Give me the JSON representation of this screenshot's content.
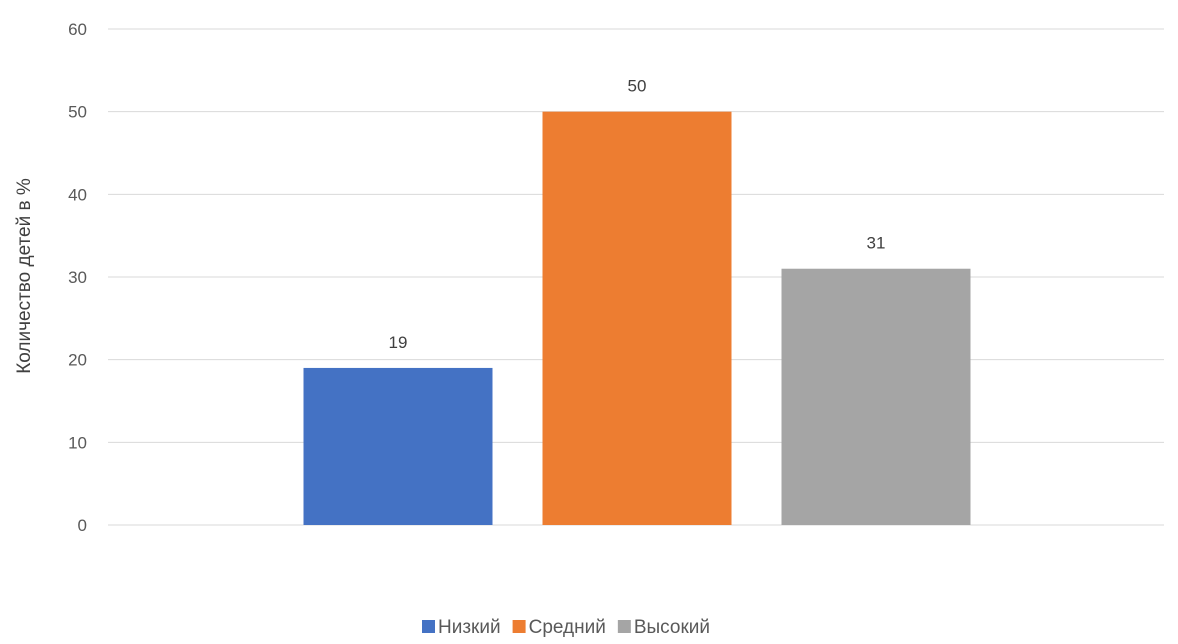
{
  "chart_data": {
    "type": "bar",
    "title": "",
    "xlabel": "",
    "ylabel": "Количество детей в %",
    "ylim": [
      0,
      60
    ],
    "yticks": [
      0,
      10,
      20,
      30,
      40,
      50,
      60
    ],
    "grid": true,
    "legend_position": "bottom",
    "series": [
      {
        "name": "Низкий",
        "value": 19,
        "color": "#4472C4"
      },
      {
        "name": "Средний",
        "value": 50,
        "color": "#ED7D31"
      },
      {
        "name": "Высокий",
        "value": 31,
        "color": "#A5A5A5"
      }
    ]
  }
}
